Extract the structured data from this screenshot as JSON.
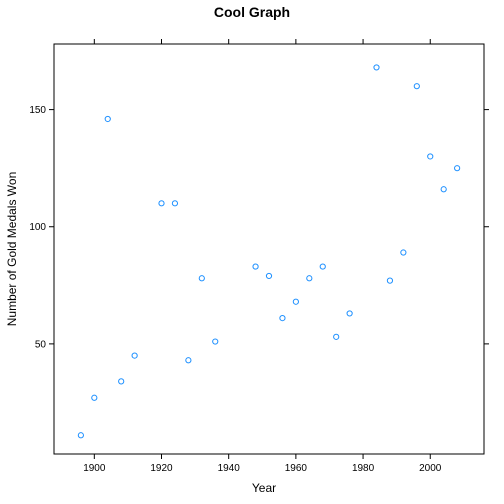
{
  "chart_data": {
    "type": "scatter",
    "title": "Cool Graph",
    "xlabel": "Year",
    "ylabel": "Number of Gold Medals Won",
    "xlim": [
      1888,
      2016
    ],
    "ylim": [
      3,
      178
    ],
    "x_ticks": [
      1900,
      1920,
      1940,
      1960,
      1980,
      2000
    ],
    "y_ticks": [
      50,
      100,
      150
    ],
    "x_tick_labels": [
      "1900",
      "1920",
      "1940",
      "1960",
      "1980",
      "2000"
    ],
    "y_tick_labels": [
      "50",
      "100",
      "150"
    ],
    "grid": false,
    "marker": "open-circle",
    "point_color": "#1e90ff",
    "axis_color": "#000000",
    "series": [
      {
        "points": [
          {
            "x": 1896,
            "y": 11
          },
          {
            "x": 1900,
            "y": 27
          },
          {
            "x": 1904,
            "y": 146
          },
          {
            "x": 1908,
            "y": 34
          },
          {
            "x": 1912,
            "y": 45
          },
          {
            "x": 1920,
            "y": 110
          },
          {
            "x": 1924,
            "y": 110
          },
          {
            "x": 1928,
            "y": 43
          },
          {
            "x": 1932,
            "y": 78
          },
          {
            "x": 1936,
            "y": 51
          },
          {
            "x": 1948,
            "y": 83
          },
          {
            "x": 1952,
            "y": 79
          },
          {
            "x": 1956,
            "y": 61
          },
          {
            "x": 1960,
            "y": 68
          },
          {
            "x": 1964,
            "y": 78
          },
          {
            "x": 1968,
            "y": 83
          },
          {
            "x": 1972,
            "y": 53
          },
          {
            "x": 1976,
            "y": 63
          },
          {
            "x": 1984,
            "y": 168
          },
          {
            "x": 1988,
            "y": 77
          },
          {
            "x": 1992,
            "y": 89
          },
          {
            "x": 1996,
            "y": 160
          },
          {
            "x": 2000,
            "y": 130
          },
          {
            "x": 2004,
            "y": 116
          },
          {
            "x": 2008,
            "y": 125
          }
        ]
      }
    ]
  }
}
